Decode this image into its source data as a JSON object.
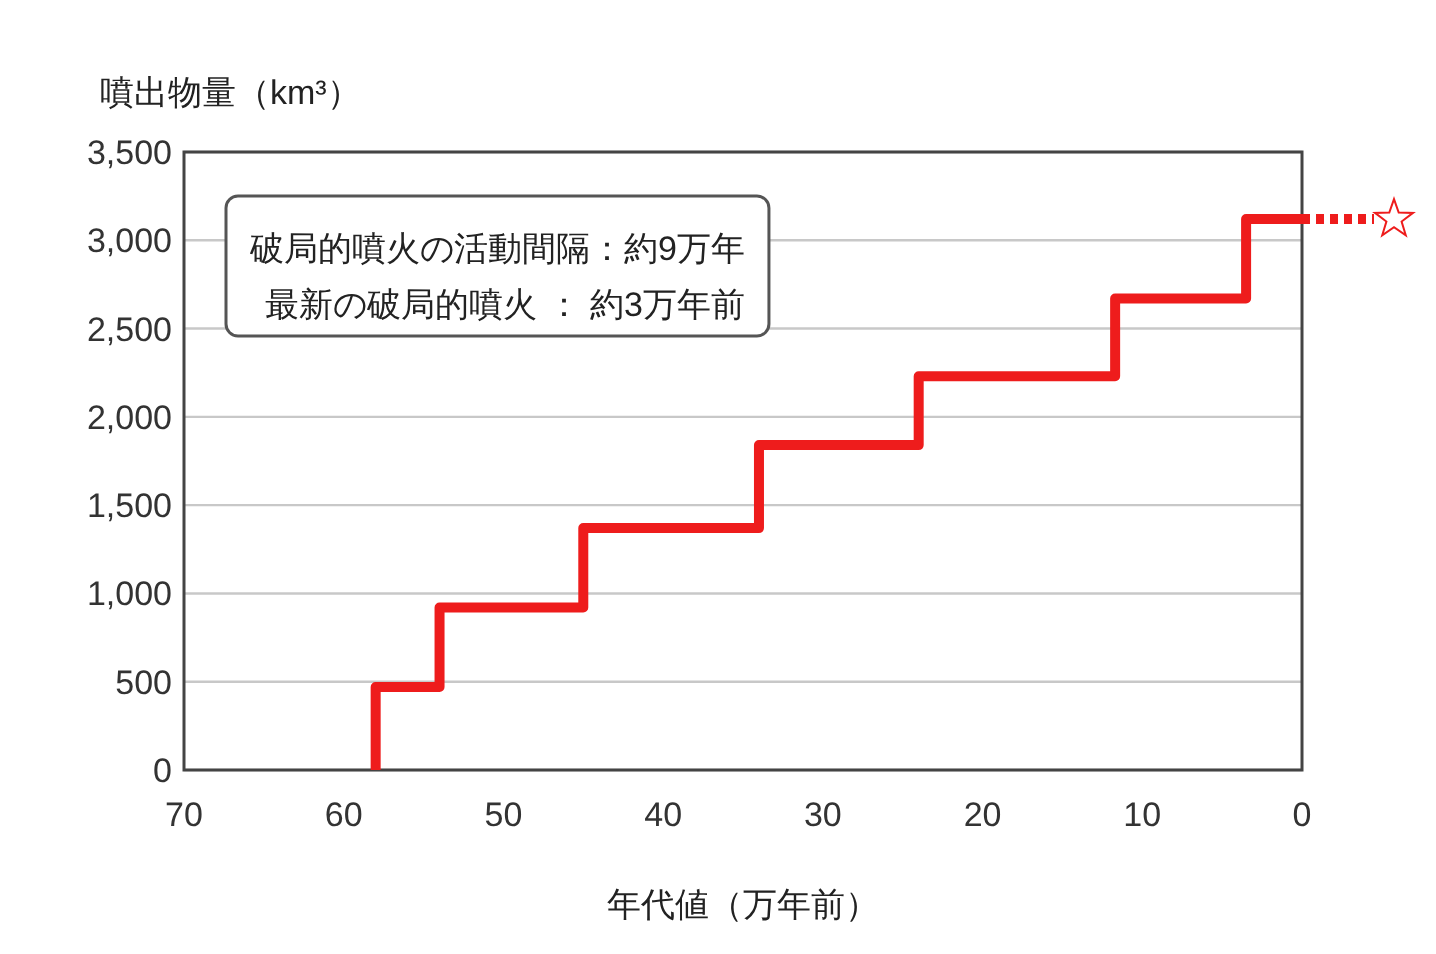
{
  "chart_data": {
    "type": "step",
    "xlabel": "年代値（万年前）",
    "ylabel": "噴出物量（km³）",
    "xlim": [
      70,
      0
    ],
    "xticks": [
      70,
      60,
      50,
      40,
      30,
      20,
      10,
      0
    ],
    "ylim": [
      0,
      3500
    ],
    "yticks": [
      0,
      {
        "value": 500,
        "label": "500"
      },
      {
        "value": 1000,
        "label": "1,000"
      },
      {
        "value": 1500,
        "label": "1,500"
      },
      {
        "value": 2000,
        "label": "2,000"
      },
      {
        "value": 2500,
        "label": "2,500"
      },
      {
        "value": 3000,
        "label": "3,000"
      },
      {
        "value": 3500,
        "label": "3,500"
      }
    ],
    "grid": "y",
    "series": [
      {
        "color": "#ee1c1c",
        "line_style": "solid",
        "x": [
          58,
          58,
          54,
          45,
          34,
          24,
          11.7,
          3.5,
          0
        ],
        "values": [
          0,
          470,
          920,
          1370,
          1840,
          2230,
          2670,
          3120,
          3120
        ]
      }
    ],
    "annotations": [
      "破局的噴火の活動間隔：約9万年",
      "最新の破局的噴火 ： 約3万年前"
    ]
  }
}
